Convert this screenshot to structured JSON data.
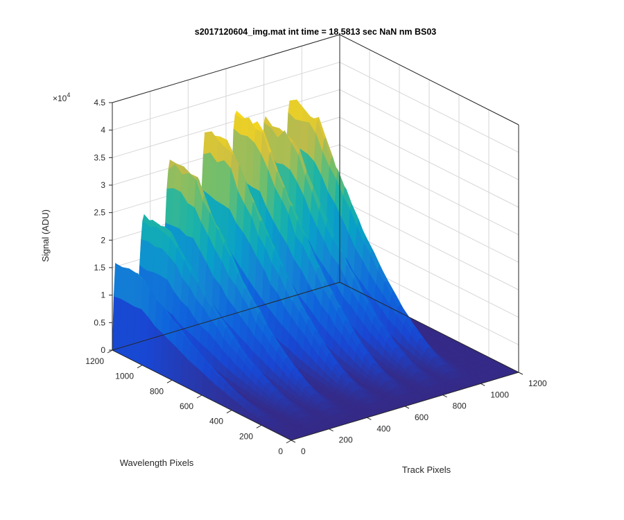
{
  "chart_data": {
    "type": "surface",
    "title": "s2017120604_img.mat int time = 18.5813 sec  NaN nm BS03",
    "xlabel": "Track Pixels",
    "ylabel": "Wavelength Pixels",
    "zlabel": "Signal (ADU)",
    "z_exponent_label": "×10",
    "z_exponent_power": "4",
    "xlim": [
      0,
      1200
    ],
    "ylim": [
      0,
      1200
    ],
    "zlim": [
      0,
      45000
    ],
    "x_ticks": [
      "0",
      "200",
      "400",
      "600",
      "800",
      "1000",
      "1200"
    ],
    "y_ticks": [
      "0",
      "200",
      "400",
      "600",
      "800",
      "1000",
      "1200"
    ],
    "z_ticks": [
      "0",
      "0.5",
      "1",
      "1.5",
      "2",
      "2.5",
      "3",
      "3.5",
      "4",
      "4.5"
    ],
    "colormap": "parula",
    "grid": true,
    "peaks": [
      {
        "track": 15,
        "signal": 15500
      },
      {
        "track": 165,
        "signal": 22500
      },
      {
        "track": 300,
        "signal": 31000
      },
      {
        "track": 490,
        "signal": 34500
      },
      {
        "track": 650,
        "signal": 36500
      },
      {
        "track": 805,
        "signal": 33500
      },
      {
        "track": 935,
        "signal": 35500
      }
    ]
  }
}
